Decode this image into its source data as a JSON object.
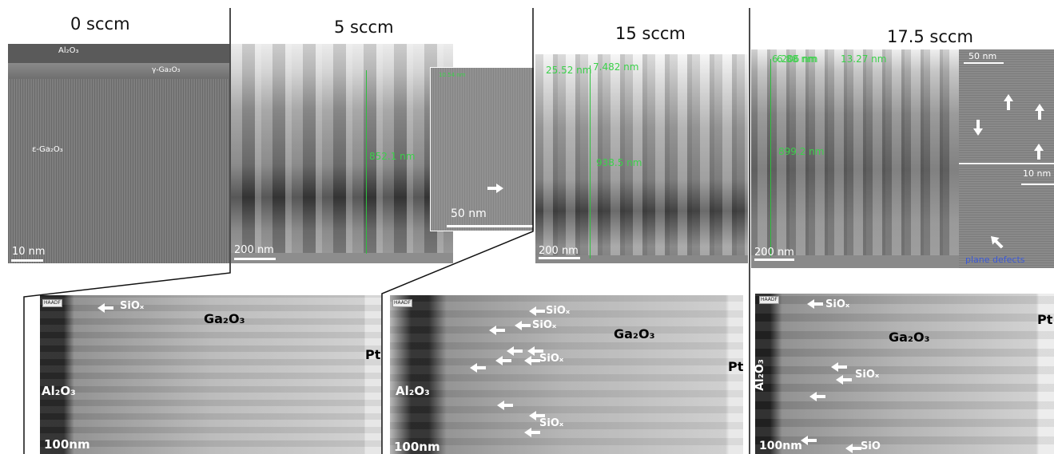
{
  "titles": [
    "0 sccm",
    "5 sccm",
    "15 sccm",
    "17.5 sccm"
  ],
  "top_panels": [
    {
      "labels": [
        "Al₂O₃",
        "γ-Ga₂O₃",
        "ε-Ga₂O₃"
      ],
      "scale_bar": "10 nm"
    },
    {
      "measurements": [
        "852.1 nm"
      ],
      "scale_bar": "200 nm"
    },
    {
      "measurements": [
        "25.52 nm",
        "7.482 nm",
        "938.5 nm"
      ],
      "scale_bar": "200 nm"
    },
    {
      "measurements": [
        "6.206 nm",
        "6.88 nm",
        "13.27 nm",
        "899.2 nm"
      ],
      "scale_bar": "200 nm"
    }
  ],
  "insets": [
    {
      "measurements": [
        "10.54 nm"
      ],
      "scale_bar": "50 nm"
    },
    {
      "scale_bar_top": "50 nm",
      "scale_bar_bottom": "10 nm",
      "annotation": "plane defects"
    }
  ],
  "bottom_panels": [
    {
      "detector": "HAADF",
      "labels": [
        "SiOₓ",
        "Ga₂O₃",
        "Pt",
        "Al₂O₃"
      ],
      "scale_bar": "100nm"
    },
    {
      "detector": "HAADF",
      "labels": [
        "SiOₓ",
        "SiOₓ",
        "SiOₓ",
        "SiOₓ",
        "Ga₂O₃",
        "Pt",
        "Al₂O₃"
      ],
      "scale_bar": "100nm"
    },
    {
      "detector": "HAADF",
      "labels": [
        "SiOₓ",
        "SiOₓ",
        "SiO",
        "Ga₂O₃",
        "Pt",
        "Al₂O₃"
      ],
      "scale_bar": "100nm"
    }
  ]
}
